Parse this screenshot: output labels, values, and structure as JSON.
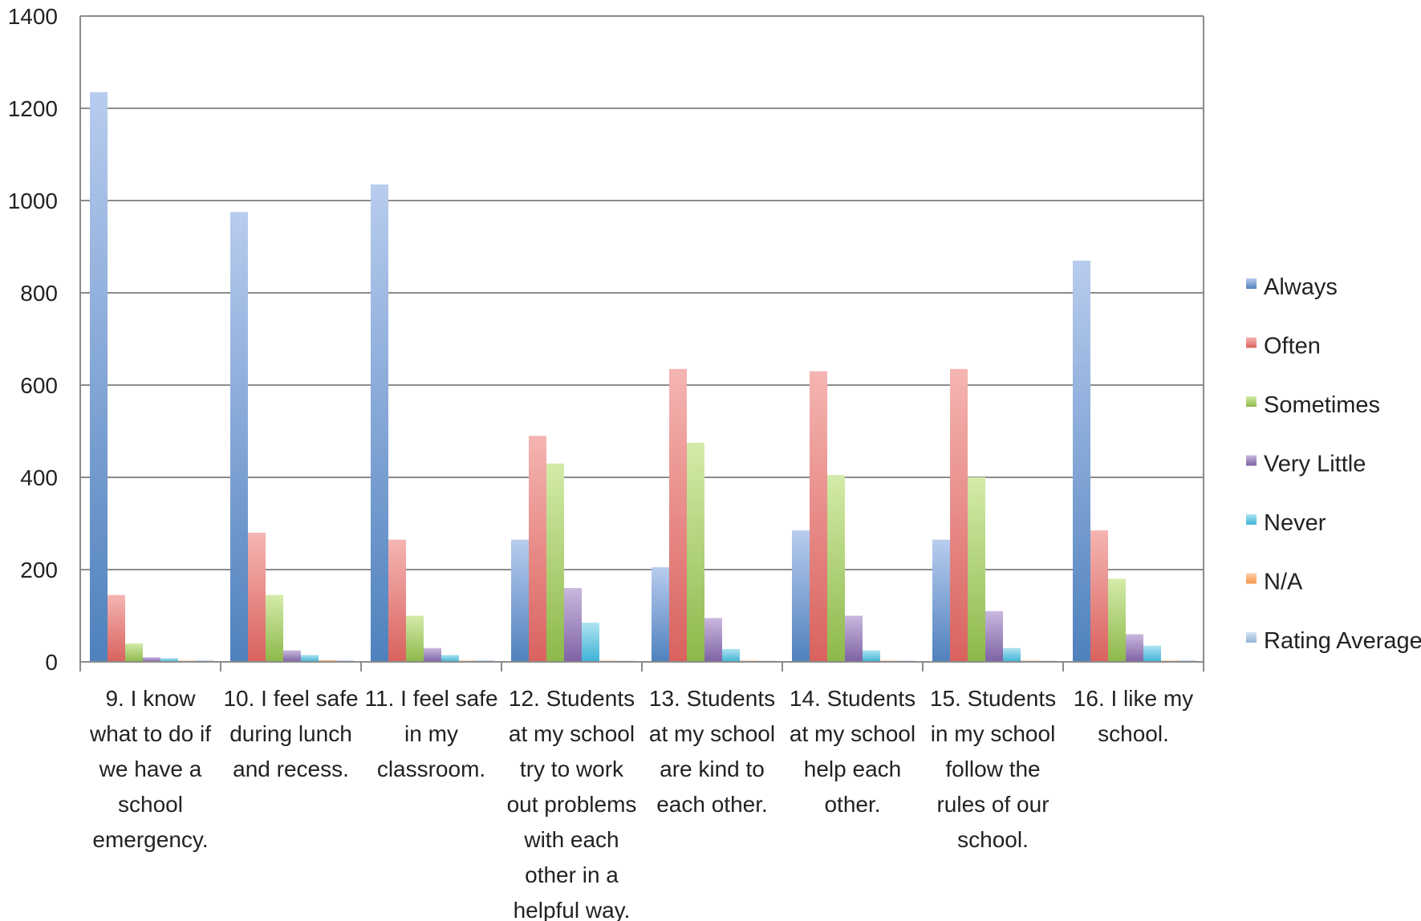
{
  "chart_data": {
    "type": "bar",
    "title": "",
    "xlabel": "",
    "ylabel": "",
    "ylim": [
      0,
      1400
    ],
    "yticks": [
      0,
      200,
      400,
      600,
      800,
      1000,
      1200,
      1400
    ],
    "grid": true,
    "legend_position": "right",
    "categories": [
      [
        "9. I know",
        "what to do if",
        "we have a",
        "school",
        "emergency."
      ],
      [
        "10. I feel safe",
        "during lunch",
        "and recess."
      ],
      [
        "11. I feel safe",
        "in my",
        "classroom."
      ],
      [
        "12. Students",
        "at my school",
        "try to work",
        "out problems",
        "with each",
        "other in a",
        "helpful way."
      ],
      [
        "13. Students",
        "at my school",
        "are kind to",
        "each other."
      ],
      [
        "14. Students",
        "at my school",
        "help each",
        "other."
      ],
      [
        "15. Students",
        "in my school",
        "follow the",
        "rules of our",
        "school."
      ],
      [
        "16. I like my",
        "school."
      ]
    ],
    "series": [
      {
        "name": "Always",
        "color": "#4F81BD",
        "light": "#B8CCEE",
        "values": [
          1235,
          975,
          1035,
          265,
          205,
          285,
          265,
          870
        ]
      },
      {
        "name": "Often",
        "color": "#D9625E",
        "light": "#F5B5B2",
        "values": [
          145,
          280,
          265,
          490,
          635,
          630,
          635,
          285
        ]
      },
      {
        "name": "Sometimes",
        "color": "#8DB84A",
        "light": "#D3EBA9",
        "values": [
          40,
          145,
          100,
          430,
          475,
          405,
          400,
          180
        ]
      },
      {
        "name": "Very Little",
        "color": "#7E62A5",
        "light": "#C9B8DE",
        "values": [
          10,
          25,
          30,
          160,
          95,
          100,
          110,
          60
        ]
      },
      {
        "name": "Never",
        "color": "#3FB2D6",
        "light": "#AEE3F2",
        "values": [
          8,
          15,
          15,
          85,
          28,
          25,
          30,
          35
        ]
      },
      {
        "name": "N/A",
        "color": "#F79646",
        "light": "#FBD1AE",
        "values": [
          3,
          4,
          3,
          3,
          3,
          3,
          3,
          3
        ]
      },
      {
        "name": "Rating Average",
        "color": "#95B3D7",
        "light": "#D6E3F3",
        "values": [
          3.8,
          3.6,
          3.7,
          2.9,
          3.0,
          3.1,
          3.0,
          3.5
        ]
      }
    ]
  }
}
